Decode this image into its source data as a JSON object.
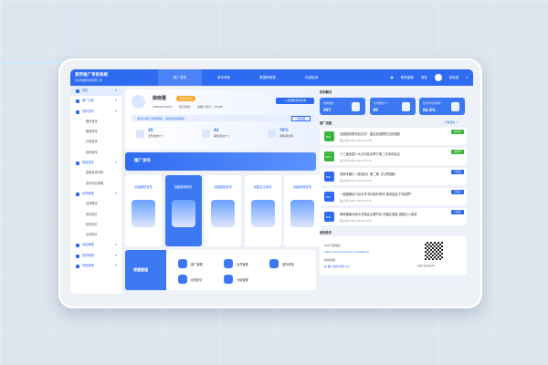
{
  "app": {
    "title": "宣传推广考核系统",
    "subtitle": "南京数据科技有限公司"
  },
  "nav": [
    {
      "label": "推广发布",
      "active": true
    },
    {
      "label": "宣传考核"
    },
    {
      "label": "数据助推表"
    },
    {
      "label": "内容检测"
    }
  ],
  "header_right": {
    "service": "联系客服",
    "messages": "消息",
    "user": "姚晓惠"
  },
  "sidebar": [
    {
      "label": "首页",
      "type": "top",
      "active": true
    },
    {
      "label": "推广记录",
      "type": "group"
    },
    {
      "label": "宣传发布",
      "type": "group"
    },
    {
      "label": "微信宣传",
      "type": "sub"
    },
    {
      "label": "微博宣传",
      "type": "sub"
    },
    {
      "label": "抖音宣传",
      "type": "sub"
    },
    {
      "label": "其他宣传",
      "type": "sub"
    },
    {
      "label": "智能宣传",
      "type": "group"
    },
    {
      "label": "智能宣传代码",
      "type": "sub"
    },
    {
      "label": "宣传作业管理",
      "type": "sub"
    },
    {
      "label": "绩效管理",
      "type": "group"
    },
    {
      "label": "绩效概览",
      "type": "sub"
    },
    {
      "label": "宣传统计",
      "type": "sub"
    },
    {
      "label": "机构统计",
      "type": "sub"
    },
    {
      "label": "队员统计",
      "type": "sub"
    },
    {
      "label": "队伍管理",
      "type": "group"
    },
    {
      "label": "机构管理",
      "type": "group"
    },
    {
      "label": "系统管理",
      "type": "group"
    }
  ],
  "profile": {
    "name": "姚晓惠",
    "badge": "高级宣传员",
    "phone": "18629172653",
    "org": "浙江机构",
    "points": "总推广积分：29088",
    "create_button": "+ 创建新宣传任务",
    "notice": "您有24条广告待审核，请尽快完成审核",
    "notice_action": "去处理",
    "stats": [
      {
        "value": "35",
        "label": "宣传发布(个)"
      },
      {
        "value": "42",
        "label": "审核通过(个)"
      },
      {
        "value": "78%",
        "label": "审核通过率"
      }
    ]
  },
  "banner": "推广发布",
  "create_cards": [
    {
      "label": "创建微信宣传"
    },
    {
      "label": "创建微博宣传",
      "active": true
    },
    {
      "label": "创建智能宣传"
    },
    {
      "label": "创建自主宣传"
    },
    {
      "label": "创建其他宣传"
    }
  ],
  "quick": {
    "title": "便捷管理",
    "items": [
      "推广管理",
      "队员管理",
      "宣传考核",
      "绩效统计",
      "分组管理"
    ]
  },
  "org": {
    "title": "机构概况",
    "cards": [
      {
        "label": "机构数量",
        "value": "307"
      },
      {
        "label": "宣传数量(个)",
        "value": "85"
      },
      {
        "label": "任务平均完成率",
        "value": "84.8%"
      }
    ]
  },
  "progress": {
    "title": "推广进度",
    "more": "查看更多 >",
    "deadline_label": "截止时间",
    "items": [
      {
        "title": "全国政协委员杜红宇：建议加强预防灾的措施",
        "date": "2022-05-19 16:30",
        "status": "进行中",
        "color": "#3cb53c",
        "pct": "80%"
      },
      {
        "title": "十三届全国人大五次会议举行第二次全体会议",
        "date": "2022-03-10 16:10",
        "status": "进行中",
        "color": "#3cb53c",
        "pct": "80%"
      },
      {
        "title": "电视专题片《零容忍》第二集《打虎拍蝇》",
        "date": "2022-01-16 10:30",
        "status": "已结束",
        "color": "#2f6bf0",
        "pct": "80%"
      },
      {
        "title": "一组图解读习近平总书记新年贺词 谁将铭定于中国梦?",
        "date": "2021-09-25 10:15",
        "status": "已结束",
        "color": "#2f6bf0",
        "pct": "80%"
      },
      {
        "title": "网络春晚北师大冬奥会主题节目 传播正能量 激励亿人奋进",
        "date": "2021-08-30 16:39",
        "status": "已结束",
        "color": "#2f6bf0",
        "pct": "80%"
      }
    ]
  },
  "helper": {
    "title": "使用助手",
    "app_label": "APP下载地址:",
    "app_url": "https://xxxxxxxxxxx.com/official",
    "guide_label": "操作指南:",
    "guide_file": "推广操作手册.doc",
    "qr_caption": "扫描下载系统APP"
  }
}
